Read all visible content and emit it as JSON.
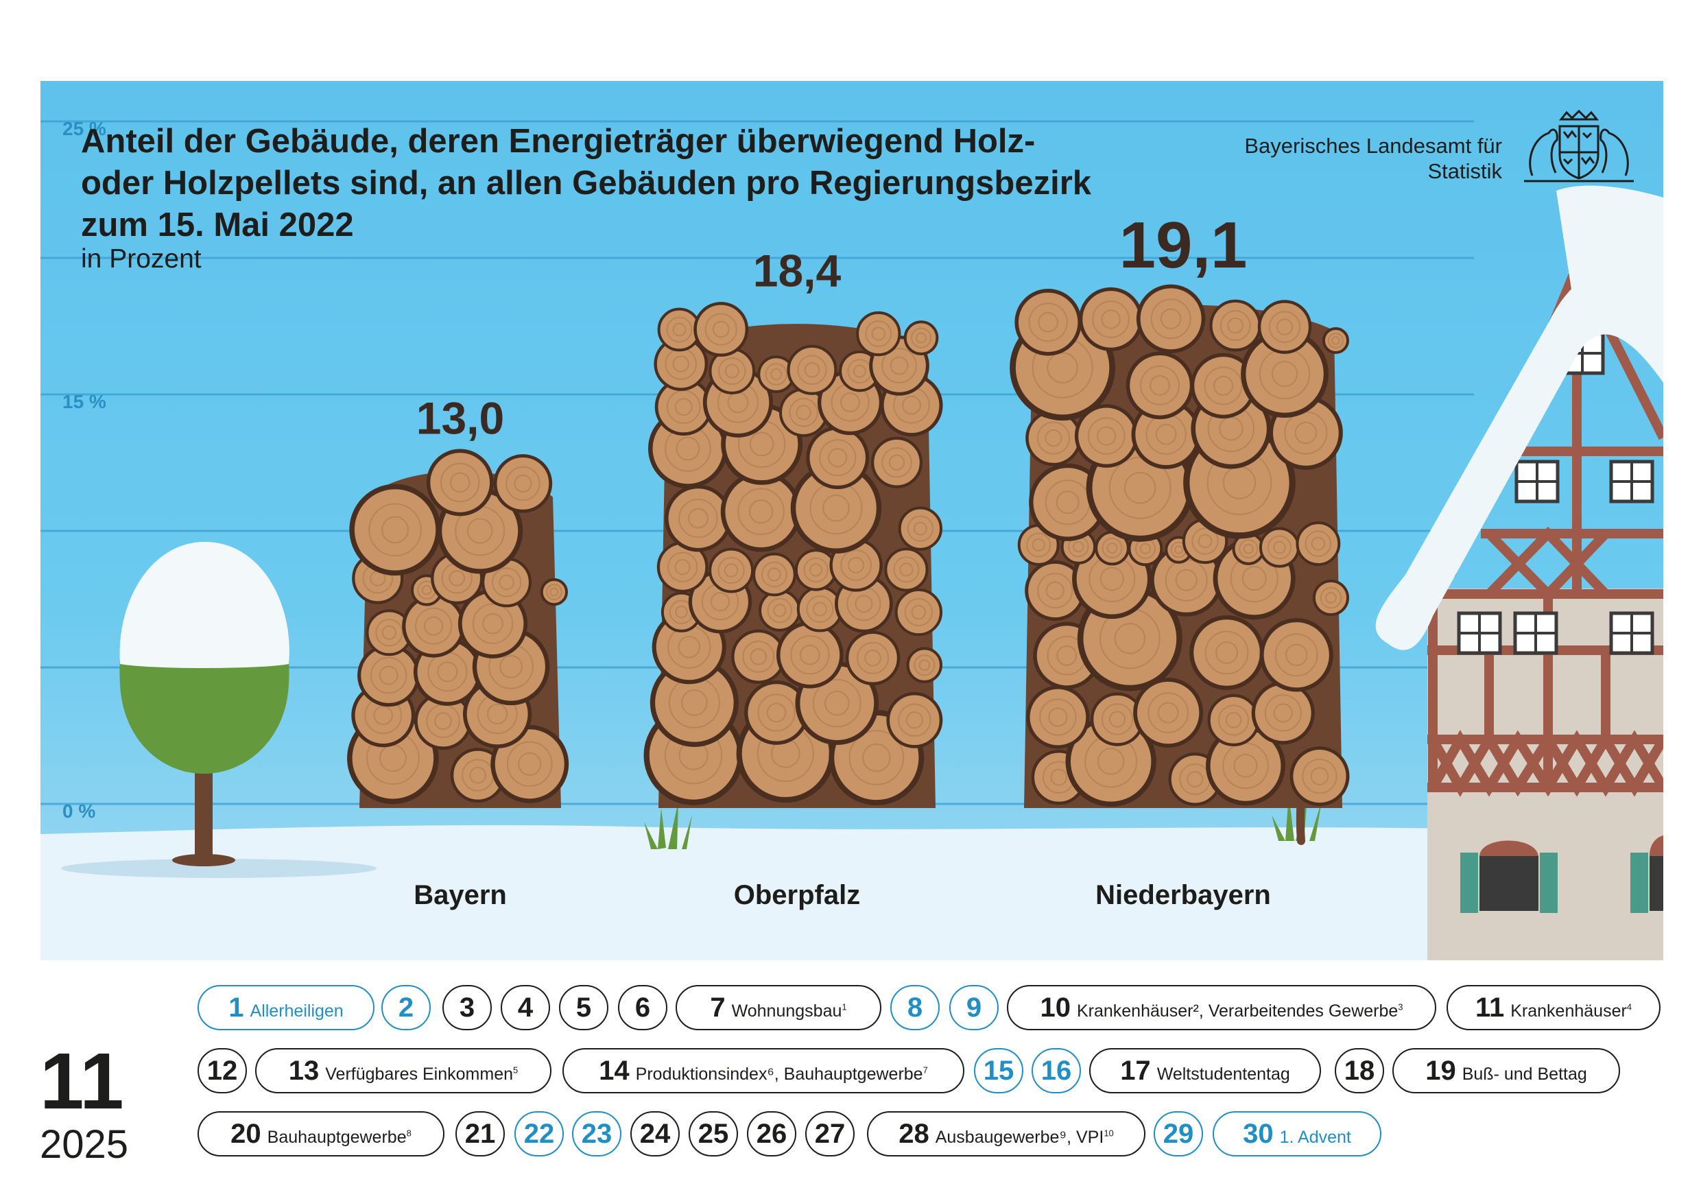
{
  "title_lines": [
    "Anteil der Gebäude, deren Energieträger überwiegend Holz-",
    "oder Holzpellets sind, an allen Gebäuden pro Regierungsbezirk",
    "zum 15. Mai 2022"
  ],
  "subtitle": "in Prozent",
  "publisher": [
    "Bayerisches Landesamt für",
    "Statistik"
  ],
  "colors": {
    "sky": "#5ec2ec",
    "gridline": "#3a9fcf",
    "tick_label": "#2a8fc2",
    "snow": "#e8f4fb",
    "wood_light": "#c99466",
    "wood_dark": "#6b4530",
    "bark": "#4a2f20",
    "text": "#1d1d1b",
    "holiday": "#1f8fc6",
    "tree_crown": "#64993e",
    "house_wall": "#d9d0c5",
    "timber": "#9f5a4a",
    "shutter": "#4a9a8a"
  },
  "chart_data": {
    "type": "bar",
    "title": "Anteil der Gebäude, deren Energieträger überwiegend Holz- oder Holzpellets sind, an allen Gebäuden pro Regierungsbezirk zum 15. Mai 2022",
    "subtitle": "in Prozent",
    "categories": [
      "Bayern",
      "Oberpfalz",
      "Niederbayern"
    ],
    "values": [
      13.0,
      18.4,
      19.1
    ],
    "value_labels": [
      "13,0",
      "18,4",
      "19,1"
    ],
    "ylim": [
      0,
      25
    ],
    "yticks": [
      0,
      5,
      10,
      15,
      20,
      25
    ],
    "ytick_labels": [
      "0 %",
      "",
      "",
      "15 %",
      "",
      "25 %"
    ],
    "grid": true,
    "legend": "none",
    "bar_style": "stacked log piles"
  },
  "calendar": {
    "month": "11",
    "year": "2025",
    "days": [
      {
        "d": "1",
        "label": "Allerheiligen",
        "holiday": true
      },
      {
        "d": "2",
        "holiday": true
      },
      {
        "d": "3"
      },
      {
        "d": "4"
      },
      {
        "d": "5"
      },
      {
        "d": "6"
      },
      {
        "d": "7",
        "label": "Wohnungsbau",
        "sup": "1"
      },
      {
        "d": "8",
        "holiday": true
      },
      {
        "d": "9",
        "holiday": true
      },
      {
        "d": "10",
        "label": "Krankenhäuser², Verarbeitendes Gewerbe",
        "sup": "3"
      },
      {
        "d": "11",
        "label": "Krankenhäuser",
        "sup": "4"
      },
      {
        "d": "12"
      },
      {
        "d": "13",
        "label": "Verfügbares Einkommen",
        "sup": "5"
      },
      {
        "d": "14",
        "label": "Produktionsindex⁶, Bauhauptgewerbe",
        "sup": "7"
      },
      {
        "d": "15",
        "holiday": true
      },
      {
        "d": "16",
        "holiday": true
      },
      {
        "d": "17",
        "label": "Weltstudententag"
      },
      {
        "d": "18"
      },
      {
        "d": "19",
        "label": "Buß- und Bettag"
      },
      {
        "d": "20",
        "label": "Bauhauptgewerbe",
        "sup": "8"
      },
      {
        "d": "21"
      },
      {
        "d": "22",
        "holiday": true
      },
      {
        "d": "23",
        "holiday": true
      },
      {
        "d": "24"
      },
      {
        "d": "25"
      },
      {
        "d": "26"
      },
      {
        "d": "27"
      },
      {
        "d": "28",
        "label": "Ausbaugewerbe⁹, VPI",
        "sup": "10"
      },
      {
        "d": "29",
        "holiday": true
      },
      {
        "d": "30",
        "label": "1. Advent",
        "holiday": true
      }
    ]
  }
}
